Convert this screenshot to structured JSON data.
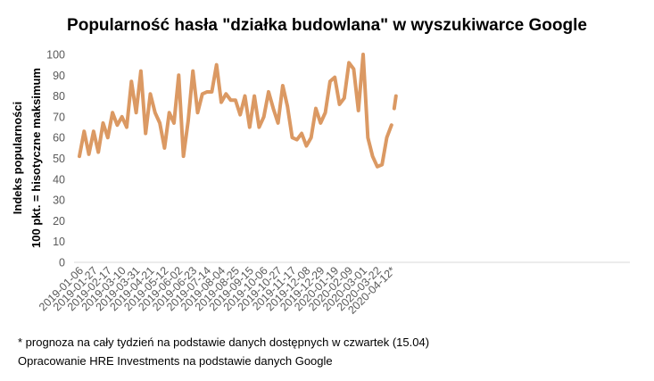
{
  "chart_data": {
    "type": "line",
    "title": "Popularność hasła \"działka budowlana\" w wyszukiwarce Google",
    "ylabel_line1": "Indeks popularności",
    "ylabel_line2": "100 pkt. = hisotyczne maksimum",
    "xlabel": "",
    "ylim": [
      0,
      100
    ],
    "yticks": [
      0,
      10,
      20,
      30,
      40,
      50,
      60,
      70,
      80,
      90,
      100
    ],
    "grid": false,
    "legend": "none",
    "line_color": "#DB9963",
    "x_tick_labels": [
      "2019-01-06",
      "2019-01-27",
      "2019-02-17",
      "2019-03-10",
      "2019-03-31",
      "2019-04-21",
      "2019-05-12",
      "2019-06-02",
      "2019-06-23",
      "2019-07-14",
      "2019-08-04",
      "2019-08-25",
      "2019-09-15",
      "2019-10-06",
      "2019-10-27",
      "2019-11-17",
      "2019-12-08",
      "2019-12-29",
      "2020-01-19",
      "2020-02-09",
      "2020-03-01",
      "2020-03-22",
      "2020-04-12*"
    ],
    "series": [
      {
        "values": [
          51,
          63,
          52,
          63,
          53,
          67,
          60,
          72,
          66,
          70,
          65,
          87,
          72,
          92,
          62,
          81,
          72,
          67,
          55,
          72,
          67,
          90,
          51,
          68,
          92,
          72,
          81,
          82,
          82,
          95,
          77,
          81,
          78,
          78,
          71,
          80,
          65,
          80,
          65,
          70,
          82,
          74,
          67,
          85,
          75,
          60,
          59,
          62,
          56,
          60,
          74,
          67,
          72,
          87,
          89,
          76,
          79,
          96,
          93,
          73,
          100,
          60,
          51,
          46,
          47,
          60,
          66
        ]
      }
    ],
    "forecast": {
      "from_index": 66,
      "value": 80
    }
  },
  "notes": {
    "footnote": "* prognoza na cały tydzień na podstawie danych dostępnych w czwartek (15.04)",
    "source": "Opracowanie HRE Investments na podstawie danych Google"
  }
}
